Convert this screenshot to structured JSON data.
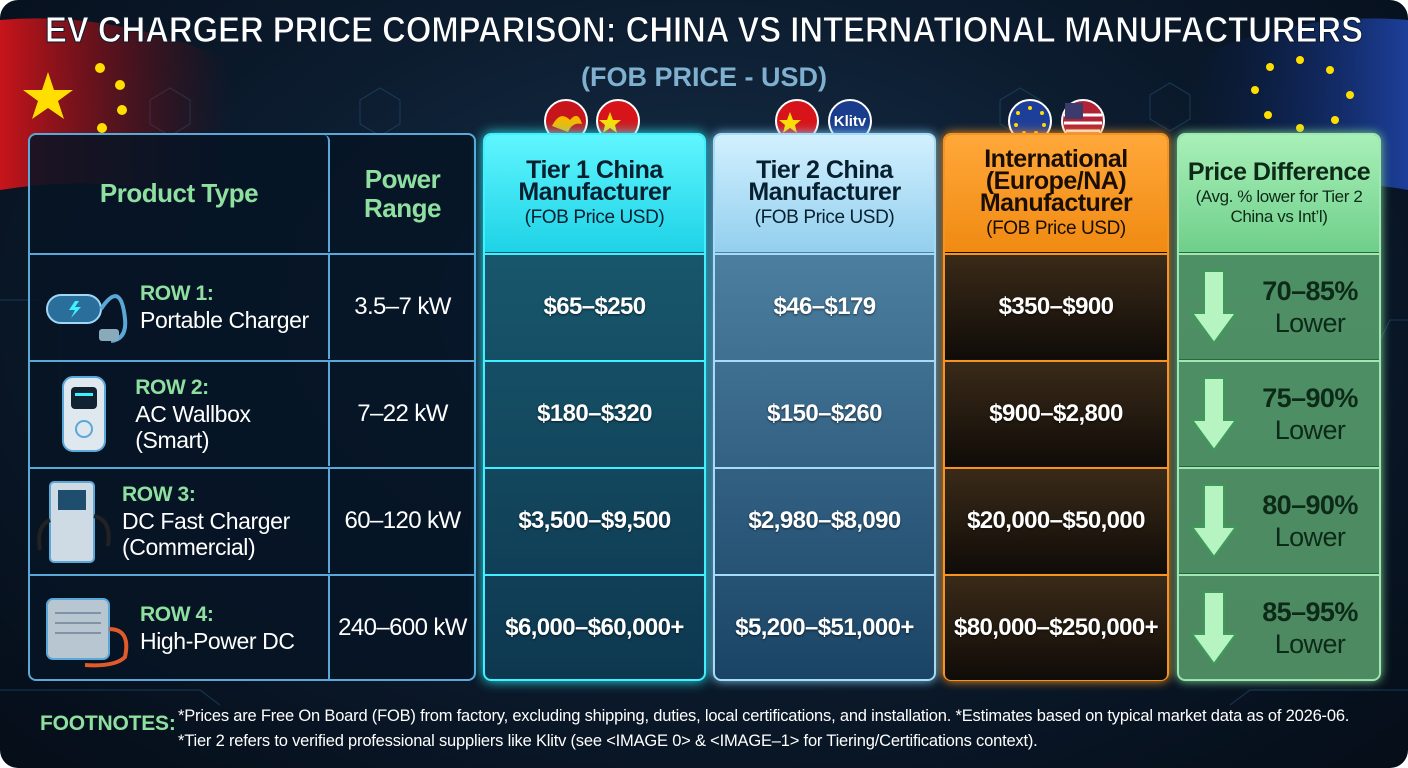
{
  "header": {
    "title": "EV CHARGER PRICE COMPARISON: CHINA VS INTERNATIONAL MANUFACTURERS",
    "subtitle": "(FOB PRICE - USD)"
  },
  "columns": [
    {
      "title": "Product Type"
    },
    {
      "title": "Power Range"
    },
    {
      "title": "Tier 1 China Manufacturer",
      "subtitle": "(FOB Price USD)"
    },
    {
      "title": "Tier 2 China Manufacturer",
      "subtitle": "(FOB Price USD)",
      "badge": "Klitv"
    },
    {
      "title": "International (Europe/NA) Manufacturer",
      "subtitle": "(FOB Price USD)"
    },
    {
      "title": "Price Difference",
      "subtitle": "(Avg. % lower for Tier 2 China vs Int’l)"
    }
  ],
  "rows": [
    {
      "label": "ROW 1:",
      "product": "Portable Charger",
      "power": "3.5–7 kW",
      "tier1": "$65–$250",
      "tier2": "$46–$179",
      "international": "$350–$900",
      "difference": "70–85%",
      "difference_note": "Lower"
    },
    {
      "label": "ROW 2:",
      "product": "AC Wallbox (Smart)",
      "power": "7–22 kW",
      "tier1": "$180–$320",
      "tier2": "$150–$260",
      "international": "$900–$2,800",
      "difference": "75–90%",
      "difference_note": "Lower"
    },
    {
      "label": "ROW 3:",
      "product": "DC Fast Charger (Commercial)",
      "power": "60–120 kW",
      "tier1": "$3,500–$9,500",
      "tier2": "$2,980–$8,090",
      "international": "$20,000–$50,000",
      "difference": "80–90%",
      "difference_note": "Lower"
    },
    {
      "label": "ROW 4:",
      "product": "High-Power DC",
      "power": "240–600 kW",
      "tier1": "$6,000–$60,000+",
      "tier2": "$5,200–$51,000+",
      "international": "$80,000–$250,000+",
      "difference": "85–95%",
      "difference_note": "Lower"
    }
  ],
  "footnotes": {
    "label": "FOOTNOTES:",
    "lines": [
      "*Prices are Free On Board (FOB) from factory, excluding shipping, duties, local certifications, and installation. *Estimates based on typical market data as of 2026-06.",
      "*Tier 2 refers to verified professional suppliers like Klitv (see <IMAGE 0> & <IMAGE–1> for Tiering/Certifications context)."
    ]
  }
}
